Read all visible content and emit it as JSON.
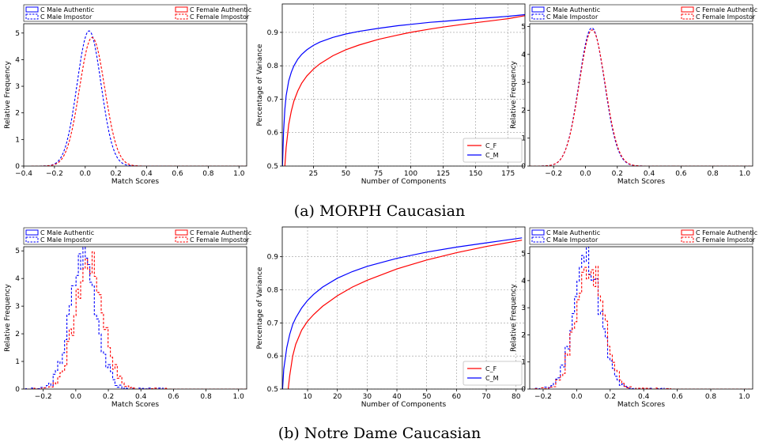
{
  "colors": {
    "male": "#0000ff",
    "female": "#ff0000",
    "grid": "#9a9a9a"
  },
  "captions": [
    "(a) MORPH Caucasian",
    "(b) Notre Dame Caucasian"
  ],
  "chart_data": [
    {
      "type": "line",
      "panel": "a-left",
      "variant": "smooth",
      "xlabel": "Match Scores",
      "ylabel": "Relative Frequency",
      "xlim": [
        -0.4,
        1.05
      ],
      "ylim": [
        0,
        5.35
      ],
      "xticks": [
        -0.4,
        -0.2,
        0.0,
        0.2,
        0.4,
        0.6,
        0.8,
        1.0
      ],
      "yticks": [
        0,
        1,
        2,
        3,
        4,
        5
      ],
      "legend": [
        "C Male Authentic",
        "C Male Impostor",
        "C Female Authentic",
        "C Female Impostor"
      ],
      "series": [
        {
          "name": "C Male Impostor",
          "color": "male",
          "dashed": true,
          "peak": 5.08,
          "mu": 0.025,
          "sigma": 0.078
        },
        {
          "name": "C Female Impostor",
          "color": "female",
          "dashed": true,
          "peak": 4.83,
          "mu": 0.045,
          "sigma": 0.082
        }
      ]
    },
    {
      "type": "line",
      "panel": "a-mid",
      "xlabel": "Number of Components",
      "ylabel": "Percentage of Variance",
      "xlim": [
        1,
        188
      ],
      "ylim": [
        0.5,
        0.985
      ],
      "xticks": [
        25,
        50,
        75,
        100,
        125,
        150,
        175
      ],
      "yticks": [
        0.5,
        0.6,
        0.7,
        0.8,
        0.9
      ],
      "legend": [
        "C_F",
        "C_M"
      ],
      "grid": true,
      "legend_position": "lower-right",
      "series": [
        {
          "name": "C_F",
          "color": "female",
          "x": [
            3.0,
            4,
            6,
            8,
            10,
            13,
            16,
            20,
            25,
            30,
            40,
            50,
            60,
            75,
            90,
            100,
            115,
            125,
            140,
            150,
            165,
            175,
            188
          ],
          "y": [
            0.5,
            0.555,
            0.625,
            0.665,
            0.695,
            0.725,
            0.748,
            0.77,
            0.79,
            0.806,
            0.83,
            0.848,
            0.862,
            0.879,
            0.892,
            0.9,
            0.91,
            0.916,
            0.924,
            0.929,
            0.936,
            0.941,
            0.95
          ]
        },
        {
          "name": "C_M",
          "color": "male",
          "x": [
            1.2,
            2,
            3,
            4,
            6,
            8,
            10,
            13,
            16,
            20,
            25,
            30,
            40,
            50,
            60,
            75,
            90,
            100,
            115,
            125,
            140,
            150,
            165,
            175,
            188
          ],
          "y": [
            0.5,
            0.6,
            0.67,
            0.71,
            0.755,
            0.781,
            0.8,
            0.82,
            0.834,
            0.848,
            0.861,
            0.871,
            0.885,
            0.895,
            0.903,
            0.912,
            0.92,
            0.924,
            0.93,
            0.933,
            0.938,
            0.941,
            0.945,
            0.948,
            0.953
          ]
        }
      ]
    },
    {
      "type": "line",
      "panel": "a-right",
      "variant": "smooth",
      "xlabel": "Match Scores",
      "ylabel": "Relative Frequency",
      "xlim": [
        -0.35,
        1.05
      ],
      "ylim": [
        0,
        5.1
      ],
      "xticks": [
        -0.2,
        0.0,
        0.2,
        0.4,
        0.6,
        0.8,
        1.0
      ],
      "yticks": [
        0,
        1,
        2,
        3,
        4,
        5
      ],
      "legend": [
        "C Male Authentic",
        "C Male Impostor",
        "C Female Authentic",
        "C Female Impostor"
      ],
      "series": [
        {
          "name": "C Male Impostor",
          "color": "male",
          "dashed": true,
          "peak": 4.95,
          "mu": 0.04,
          "sigma": 0.08
        },
        {
          "name": "C Female Impostor",
          "color": "female",
          "dashed": true,
          "peak": 4.88,
          "mu": 0.042,
          "sigma": 0.081
        }
      ]
    },
    {
      "type": "line",
      "panel": "b-left",
      "variant": "step",
      "xlabel": "Match Scores",
      "ylabel": "Relative Frequency",
      "xlim": [
        -0.32,
        1.05
      ],
      "ylim": [
        0,
        5.15
      ],
      "xticks": [
        -0.2,
        0.0,
        0.2,
        0.4,
        0.6,
        0.8,
        1.0
      ],
      "yticks": [
        0,
        1,
        2,
        3,
        4,
        5
      ],
      "legend": [
        "C Male Authentic",
        "C Male Impostor",
        "C Female Authentic",
        "C Female Impostor"
      ],
      "series": [
        {
          "name": "C Male Impostor",
          "color": "male",
          "dashed": true,
          "peak": 4.85,
          "mu": 0.04,
          "sigma": 0.08,
          "seed": 3
        },
        {
          "name": "C Female Impostor",
          "color": "female",
          "dashed": true,
          "peak": 4.6,
          "mu": 0.075,
          "sigma": 0.085,
          "seed": 7
        }
      ]
    },
    {
      "type": "line",
      "panel": "b-mid",
      "xlabel": "Number of Components",
      "ylabel": "Percentage of Variance",
      "xlim": [
        1.5,
        83
      ],
      "ylim": [
        0.5,
        0.99
      ],
      "xticks": [
        10,
        20,
        30,
        40,
        50,
        60,
        70,
        80
      ],
      "yticks": [
        0.5,
        0.6,
        0.7,
        0.8,
        0.9
      ],
      "legend": [
        "C_F",
        "C_M"
      ],
      "grid": true,
      "legend_position": "lower-right",
      "series": [
        {
          "name": "C_F",
          "color": "female",
          "x": [
            3.5,
            4,
            5,
            6,
            8,
            10,
            12,
            15,
            20,
            25,
            30,
            40,
            50,
            60,
            70,
            82
          ],
          "y": [
            0.5,
            0.54,
            0.6,
            0.635,
            0.678,
            0.705,
            0.725,
            0.75,
            0.782,
            0.808,
            0.829,
            0.863,
            0.89,
            0.912,
            0.931,
            0.95
          ]
        },
        {
          "name": "C_M",
          "color": "male",
          "x": [
            1.6,
            2,
            3,
            4,
            5,
            6,
            8,
            10,
            12,
            15,
            20,
            25,
            30,
            40,
            50,
            60,
            70,
            82
          ],
          "y": [
            0.5,
            0.56,
            0.625,
            0.665,
            0.695,
            0.715,
            0.745,
            0.768,
            0.786,
            0.808,
            0.835,
            0.855,
            0.871,
            0.895,
            0.914,
            0.929,
            0.942,
            0.957
          ]
        }
      ]
    },
    {
      "type": "line",
      "panel": "b-right",
      "variant": "step",
      "xlabel": "Match Scores",
      "ylabel": "Relative Frequency",
      "xlim": [
        -0.28,
        1.05
      ],
      "ylim": [
        0,
        5.25
      ],
      "xticks": [
        -0.2,
        0.0,
        0.2,
        0.4,
        0.6,
        0.8,
        1.0
      ],
      "yticks": [
        0,
        1,
        2,
        3,
        4,
        5
      ],
      "legend": [
        "C Male Authentic",
        "C Male Impostor",
        "C Female Authentic",
        "C Female Impostor"
      ],
      "series": [
        {
          "name": "C Male Impostor",
          "color": "male",
          "dashed": true,
          "peak": 4.9,
          "mu": 0.055,
          "sigma": 0.078,
          "seed": 11
        },
        {
          "name": "C Female Impostor",
          "color": "female",
          "dashed": true,
          "peak": 4.6,
          "mu": 0.07,
          "sigma": 0.082,
          "seed": 17
        }
      ]
    }
  ]
}
